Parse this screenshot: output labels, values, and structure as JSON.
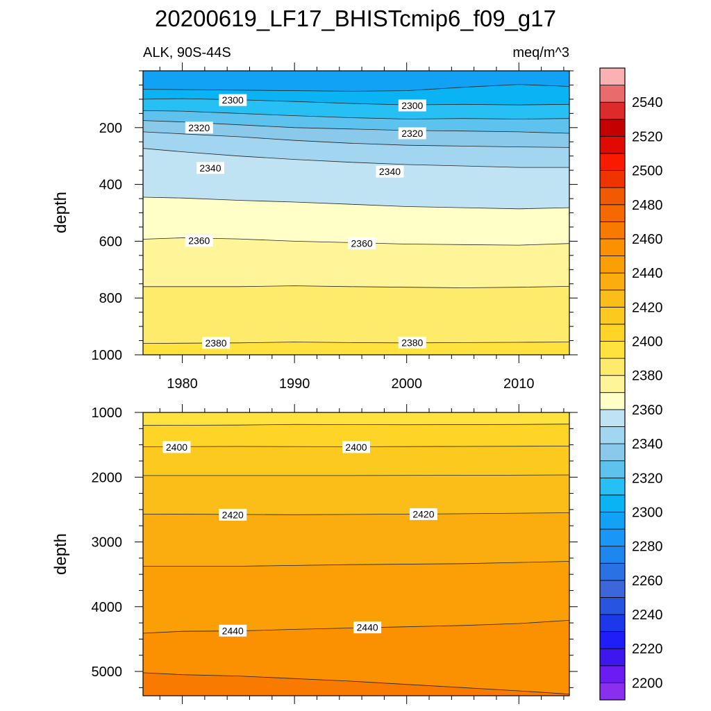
{
  "chart_data": {
    "type": "contour",
    "title": "20200619_LF17_BHISTcmip6_f09_g17",
    "subtitle_left": "ALK, 90S-44S",
    "subtitle_right": "meq/m^3",
    "colorbar": {
      "levels": [
        2190,
        2200,
        2210,
        2220,
        2230,
        2240,
        2250,
        2260,
        2270,
        2280,
        2290,
        2300,
        2310,
        2320,
        2330,
        2340,
        2350,
        2360,
        2370,
        2380,
        2390,
        2400,
        2410,
        2420,
        2430,
        2440,
        2450,
        2460,
        2470,
        2480,
        2490,
        2500,
        2510,
        2520,
        2530,
        2540,
        2550
      ],
      "labels": [
        "2200",
        "2220",
        "2240",
        "2260",
        "2280",
        "2300",
        "2320",
        "2340",
        "2360",
        "2380",
        "2400",
        "2420",
        "2440",
        "2460",
        "2480",
        "2500",
        "2520",
        "2540"
      ],
      "colors": [
        "#8b2fef",
        "#6c1cf2",
        "#3e16ee",
        "#1f1efa",
        "#1b38ea",
        "#2755e0",
        "#3c67db",
        "#2a72e3",
        "#1d86ef",
        "#1a96f6",
        "#11a2f5",
        "#0ab4f4",
        "#27c0f5",
        "#5dc3ee",
        "#8ac9ea",
        "#a2d5f0",
        "#bfe3f2",
        "#ffffc7",
        "#fff598",
        "#ffeb6b",
        "#ffe23d",
        "#fed527",
        "#fcc91e",
        "#fbbd17",
        "#fbad0f",
        "#fb9f07",
        "#fb9000",
        "#f87b00",
        "#f46a00",
        "#f05a00",
        "#f03400",
        "#f71c00",
        "#e00a00",
        "#c40000",
        "#dd2b2b",
        "#ea6b6b",
        "#fbb1b1"
      ]
    },
    "panels": [
      {
        "name": "upper",
        "ylabel": "depth",
        "ylim": [
          0,
          1000
        ],
        "xlim": [
          1976.5,
          2014.5
        ],
        "yticks": [
          200,
          400,
          600,
          800,
          1000
        ],
        "yticklabels": [
          "200",
          "400",
          "600",
          "800",
          "1000"
        ],
        "xticks": [
          1980,
          1990,
          2000,
          2010
        ],
        "xticklabels": [
          "1980",
          "1990",
          "2000",
          "2010"
        ],
        "contours": [
          {
            "level": 2290,
            "points": [
              [
                1976.5,
                65
              ],
              [
                1985,
                68
              ],
              [
                1995,
                72
              ],
              [
                2000,
                70
              ],
              [
                2005,
                58
              ],
              [
                2010,
                48
              ],
              [
                2014.5,
                55
              ]
            ]
          },
          {
            "level": 2300,
            "points": [
              [
                1976.5,
                100
              ],
              [
                1980,
                98
              ],
              [
                1985,
                102
              ],
              [
                1990,
                108
              ],
              [
                1995,
                115
              ],
              [
                2000,
                120
              ],
              [
                2005,
                118
              ],
              [
                2010,
                120
              ],
              [
                2014.5,
                118
              ]
            ]
          },
          {
            "level": 2310,
            "points": [
              [
                1976.5,
                140
              ],
              [
                1980,
                142
              ],
              [
                1985,
                150
              ],
              [
                1990,
                158
              ],
              [
                1995,
                165
              ],
              [
                2000,
                170
              ],
              [
                2005,
                168
              ],
              [
                2010,
                170
              ],
              [
                2014.5,
                168
              ]
            ]
          },
          {
            "level": 2320,
            "points": [
              [
                1976.5,
                175
              ],
              [
                1980,
                180
              ],
              [
                1985,
                190
              ],
              [
                1990,
                200
              ],
              [
                1995,
                205
              ],
              [
                2000,
                210
              ],
              [
                2005,
                212
              ],
              [
                2010,
                215
              ],
              [
                2014.5,
                220
              ]
            ]
          },
          {
            "level": 2330,
            "points": [
              [
                1976.5,
                215
              ],
              [
                1980,
                222
              ],
              [
                1985,
                232
              ],
              [
                1990,
                245
              ],
              [
                1995,
                255
              ],
              [
                2000,
                262
              ],
              [
                2005,
                265
              ],
              [
                2010,
                268
              ],
              [
                2014.5,
                270
              ]
            ]
          },
          {
            "level": 2340,
            "points": [
              [
                1976.5,
                273
              ],
              [
                1980,
                285
              ],
              [
                1985,
                300
              ],
              [
                1990,
                312
              ],
              [
                1995,
                322
              ],
              [
                2000,
                330
              ],
              [
                2005,
                335
              ],
              [
                2010,
                340
              ],
              [
                2014.5,
                340
              ]
            ]
          },
          {
            "level": 2350,
            "points": [
              [
                1976.5,
                445
              ],
              [
                1980,
                448
              ],
              [
                1985,
                456
              ],
              [
                1990,
                462
              ],
              [
                1995,
                470
              ],
              [
                2000,
                478
              ],
              [
                2005,
                482
              ],
              [
                2010,
                486
              ],
              [
                2014.5,
                482
              ]
            ]
          },
          {
            "level": 2360,
            "points": [
              [
                1976.5,
                593
              ],
              [
                1980,
                588
              ],
              [
                1985,
                592
              ],
              [
                1990,
                600
              ],
              [
                1995,
                605
              ],
              [
                2000,
                610
              ],
              [
                2005,
                612
              ],
              [
                2010,
                614
              ],
              [
                2014.5,
                608
              ]
            ]
          },
          {
            "level": 2370,
            "points": [
              [
                1976.5,
                760
              ],
              [
                1985,
                760
              ],
              [
                1990,
                757
              ],
              [
                1995,
                760
              ],
              [
                2000,
                762
              ],
              [
                2005,
                764
              ],
              [
                2010,
                762
              ],
              [
                2014.5,
                759
              ]
            ]
          },
          {
            "level": 2380,
            "points": [
              [
                1976.5,
                960
              ],
              [
                1985,
                958
              ],
              [
                1990,
                955
              ],
              [
                1995,
                957
              ],
              [
                2000,
                958
              ],
              [
                2005,
                957
              ],
              [
                2010,
                956
              ],
              [
                2014.5,
                955
              ]
            ]
          }
        ],
        "contour_labels": [
          {
            "text": "2300",
            "x": 1984.5,
            "y": 103
          },
          {
            "text": "2300",
            "x": 2000.5,
            "y": 122
          },
          {
            "text": "2320",
            "x": 1981.5,
            "y": 200
          },
          {
            "text": "2320",
            "x": 2000.5,
            "y": 220
          },
          {
            "text": "2340",
            "x": 1982.5,
            "y": 342
          },
          {
            "text": "2340",
            "x": 1998.5,
            "y": 355
          },
          {
            "text": "2360",
            "x": 1981.5,
            "y": 598
          },
          {
            "text": "2360",
            "x": 1996,
            "y": 608
          },
          {
            "text": "2380",
            "x": 1983,
            "y": 958
          },
          {
            "text": "2380",
            "x": 2000.5,
            "y": 957
          }
        ]
      },
      {
        "name": "lower",
        "ylabel": "depth",
        "ylim": [
          1000,
          5375
        ],
        "xlim": [
          1976.5,
          2014.5
        ],
        "yticks": [
          1000,
          2000,
          3000,
          4000,
          5000
        ],
        "yticklabels": [
          "1000",
          "2000",
          "3000",
          "4000",
          "5000"
        ],
        "xticks": [
          1980,
          1990,
          2000,
          2010
        ],
        "xticklabels": [],
        "contours": [
          {
            "level": 2390,
            "points": [
              [
                1976.5,
                1200
              ],
              [
                1985,
                1195
              ],
              [
                1990,
                1185
              ],
              [
                2000,
                1190
              ],
              [
                2010,
                1185
              ],
              [
                2014.5,
                1180
              ]
            ]
          },
          {
            "level": 2400,
            "points": [
              [
                1976.5,
                1530
              ],
              [
                1985,
                1525
              ],
              [
                1995,
                1530
              ],
              [
                2005,
                1525
              ],
              [
                2014.5,
                1520
              ]
            ]
          },
          {
            "level": 2410,
            "points": [
              [
                1976.5,
                1975
              ],
              [
                1985,
                1975
              ],
              [
                1995,
                1975
              ],
              [
                2005,
                1972
              ],
              [
                2014.5,
                1965
              ]
            ]
          },
          {
            "level": 2420,
            "points": [
              [
                1976.5,
                2570
              ],
              [
                1985,
                2575
              ],
              [
                1990,
                2580
              ],
              [
                1995,
                2575
              ],
              [
                2005,
                2565
              ],
              [
                2014.5,
                2550
              ]
            ]
          },
          {
            "level": 2430,
            "points": [
              [
                1976.5,
                3375
              ],
              [
                1985,
                3375
              ],
              [
                1995,
                3350
              ],
              [
                2005,
                3335
              ],
              [
                2014.5,
                3300
              ]
            ]
          },
          {
            "level": 2440,
            "points": [
              [
                1976.5,
                4410
              ],
              [
                1980,
                4380
              ],
              [
                1985,
                4375
              ],
              [
                1990,
                4350
              ],
              [
                1995,
                4330
              ],
              [
                2000,
                4310
              ],
              [
                2005,
                4290
              ],
              [
                2010,
                4260
              ],
              [
                2014.5,
                4210
              ]
            ]
          },
          {
            "level": 2450,
            "points": [
              [
                1976.5,
                5020
              ],
              [
                1980,
                5050
              ],
              [
                1985,
                5070
              ],
              [
                1990,
                5110
              ],
              [
                1995,
                5150
              ],
              [
                2000,
                5200
              ],
              [
                2005,
                5250
              ],
              [
                2010,
                5300
              ],
              [
                2014.5,
                5350
              ]
            ]
          }
        ],
        "contour_labels": [
          {
            "text": "2400",
            "x": 1979.5,
            "y": 1535
          },
          {
            "text": "2400",
            "x": 1995.5,
            "y": 1535
          },
          {
            "text": "2420",
            "x": 1984.5,
            "y": 2580
          },
          {
            "text": "2420",
            "x": 2001.5,
            "y": 2570
          },
          {
            "text": "2440",
            "x": 1984.5,
            "y": 4370
          },
          {
            "text": "2440",
            "x": 1996.5,
            "y": 4320
          }
        ]
      }
    ]
  }
}
